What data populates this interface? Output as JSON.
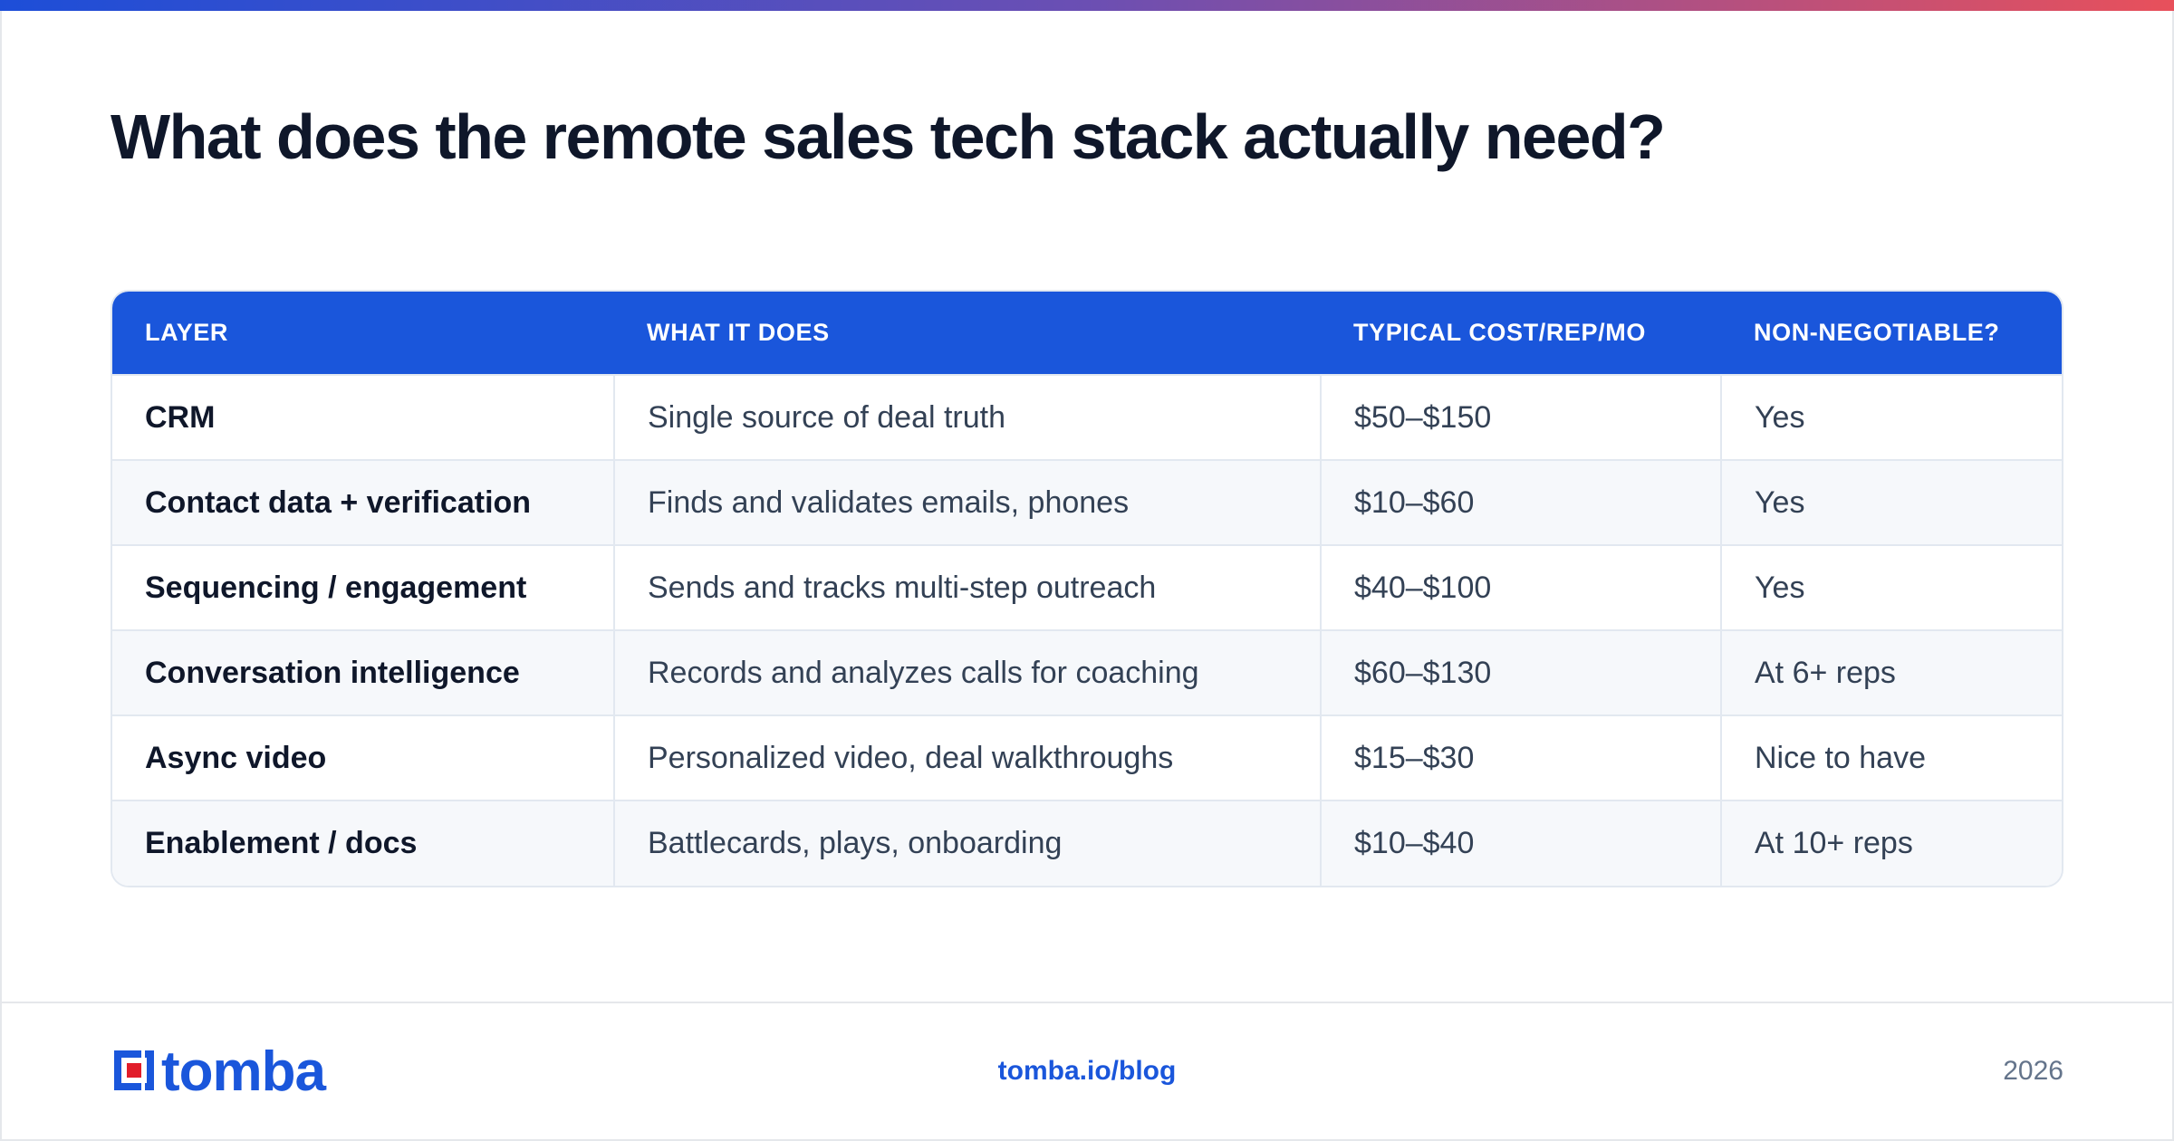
{
  "title": "What does the remote sales tech stack actually need?",
  "colors": {
    "accent": "#1a56db",
    "gradient_start": "#1d4ed8",
    "gradient_end": "#e8505b",
    "brand_mark_red": "#e11d2a"
  },
  "table": {
    "headers": [
      "LAYER",
      "WHAT IT DOES",
      "TYPICAL COST/REP/MO",
      "NON-NEGOTIABLE?"
    ],
    "rows": [
      [
        "CRM",
        "Single source of deal truth",
        "$50–$150",
        "Yes"
      ],
      [
        "Contact data + verification",
        "Finds and validates emails, phones",
        "$10–$60",
        "Yes"
      ],
      [
        "Sequencing / engagement",
        "Sends and tracks multi-step outreach",
        "$40–$100",
        "Yes"
      ],
      [
        "Conversation intelligence",
        "Records and analyzes calls for coaching",
        "$60–$130",
        "At 6+ reps"
      ],
      [
        "Async video",
        "Personalized video, deal walkthroughs",
        "$15–$30",
        "Nice to have"
      ],
      [
        "Enablement / docs",
        "Battlecards, plays, onboarding",
        "$10–$40",
        "At 10+ reps"
      ]
    ]
  },
  "footer": {
    "logo_text": "tomba",
    "logo_icon": "tomba-logo-icon",
    "url": "tomba.io/blog",
    "year": "2026"
  }
}
